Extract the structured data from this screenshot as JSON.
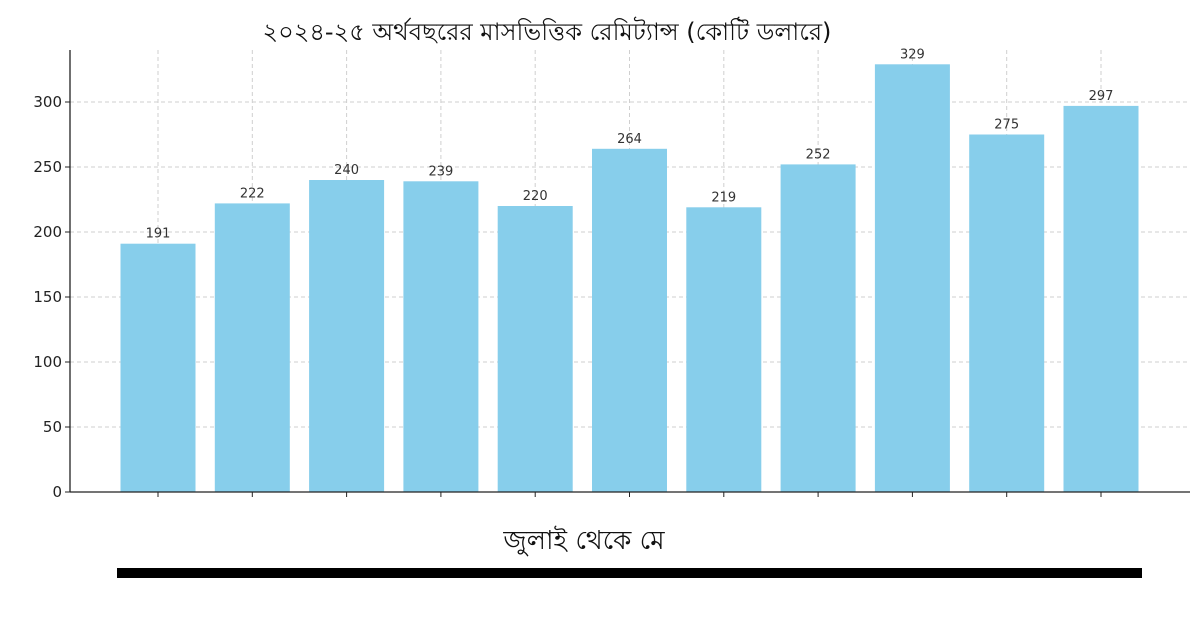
{
  "chart_data": {
    "type": "bar",
    "title": "২০২৪-২৫ অর্থবছরের মাসভিত্তিক রেমিট্যান্স (কোটি ডলারে)",
    "xlabel": "জুলাই থেকে মে",
    "ylabel": "",
    "categories": [
      "",
      "",
      "",
      "",
      "",
      "",
      "",
      "",
      "",
      "",
      ""
    ],
    "values": [
      191,
      222,
      240,
      239,
      220,
      264,
      219,
      252,
      329,
      275,
      297
    ],
    "ylim": [
      0,
      340
    ],
    "yticks": [
      0,
      50,
      100,
      150,
      200,
      250,
      300
    ],
    "grid": true,
    "bar_color": "#87ceeb"
  }
}
